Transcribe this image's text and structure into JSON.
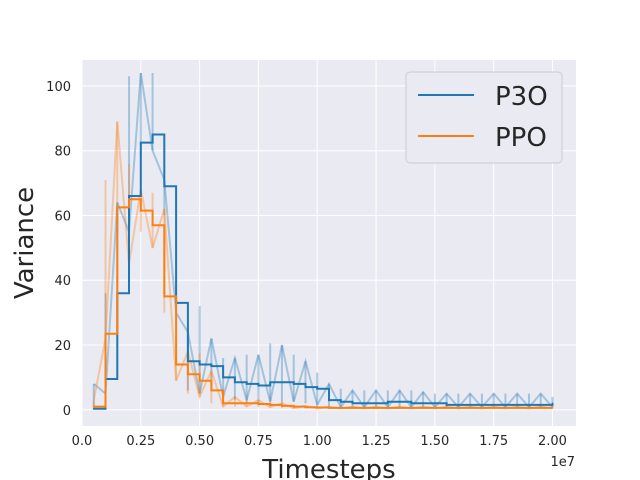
{
  "chart_data": {
    "type": "line",
    "title": "",
    "xlabel": "Timesteps",
    "ylabel": "Variance",
    "x_offset_label": "1e7",
    "xlim": [
      0.0,
      2.1
    ],
    "ylim": [
      -5,
      108
    ],
    "x_ticks": [
      0.0,
      0.25,
      0.5,
      0.75,
      1.0,
      1.25,
      1.5,
      1.75,
      2.0
    ],
    "x_tick_labels": [
      "0.0",
      "0.25",
      "0.50",
      "0.75",
      "1.00",
      "1.25",
      "1.50",
      "1.75",
      "2.00"
    ],
    "y_ticks": [
      0,
      20,
      40,
      60,
      80,
      100
    ],
    "y_tick_labels": [
      "0",
      "20",
      "40",
      "60",
      "80",
      "100"
    ],
    "grid": true,
    "legend_position": "top-right",
    "series": [
      {
        "name": "P3O",
        "color": "#1f77b4",
        "x": [
          0.05,
          0.1,
          0.15,
          0.2,
          0.25,
          0.3,
          0.35,
          0.4,
          0.45,
          0.5,
          0.55,
          0.6,
          0.65,
          0.7,
          0.75,
          0.8,
          0.85,
          0.9,
          0.95,
          1.0,
          1.05,
          1.1,
          1.15,
          1.2,
          1.25,
          1.3,
          1.35,
          1.4,
          1.45,
          1.5,
          1.55,
          1.6,
          1.65,
          1.7,
          1.75,
          1.8,
          1.85,
          1.9,
          1.95,
          2.0
        ],
        "y": [
          0.3,
          9.5,
          36.0,
          66.0,
          82.5,
          85.0,
          69.0,
          33.0,
          15.0,
          14.0,
          13.5,
          10.0,
          8.5,
          8.0,
          7.5,
          8.5,
          8.5,
          8.0,
          7.0,
          6.5,
          3.0,
          2.5,
          2.0,
          2.0,
          2.0,
          2.5,
          2.5,
          2.0,
          2.0,
          2.0,
          1.5,
          1.5,
          1.5,
          1.5,
          1.5,
          1.5,
          1.5,
          1.5,
          1.5,
          2.0
        ],
        "raw_min": [
          0.0,
          5.0,
          30.0,
          55.0,
          78.0,
          80.0,
          60.0,
          30.0,
          6.0,
          5.0,
          8.0,
          4.0,
          3.0,
          3.0,
          2.0,
          2.5,
          2.0,
          2.5,
          2.0,
          1.5,
          1.0,
          0.8,
          0.8,
          0.8,
          0.8,
          0.8,
          0.8,
          0.8,
          0.8,
          0.8,
          0.8,
          0.8,
          0.8,
          0.8,
          0.8,
          0.8,
          0.8,
          0.8,
          0.8,
          0.8
        ],
        "raw_max": [
          8.0,
          36.0,
          64.0,
          103.0,
          104.0,
          104.0,
          71.0,
          35.0,
          24.0,
          32.0,
          22.0,
          16.0,
          16.0,
          17.0,
          17.0,
          20.5,
          20.0,
          17.0,
          15.0,
          11.5,
          8.0,
          6.5,
          6.0,
          6.0,
          6.0,
          6.0,
          6.0,
          6.0,
          5.5,
          5.0,
          5.0,
          5.0,
          5.0,
          5.0,
          5.0,
          5.0,
          5.0,
          5.0,
          5.0,
          4.0
        ]
      },
      {
        "name": "PPO",
        "color": "#ff7f0e",
        "x": [
          0.05,
          0.1,
          0.15,
          0.2,
          0.25,
          0.3,
          0.35,
          0.4,
          0.45,
          0.5,
          0.55,
          0.6,
          0.65,
          0.7,
          0.75,
          0.8,
          0.85,
          0.9,
          0.95,
          1.0,
          1.05,
          1.1,
          1.15,
          1.2,
          1.25,
          1.3,
          1.35,
          1.4,
          1.45,
          1.5,
          1.55,
          1.6,
          1.65,
          1.7,
          1.75,
          1.8,
          1.85,
          1.9,
          1.95,
          2.0
        ],
        "y": [
          1.0,
          23.5,
          62.5,
          65.0,
          61.5,
          57.0,
          35.0,
          14.0,
          11.0,
          9.0,
          6.0,
          2.0,
          2.0,
          2.0,
          1.8,
          1.5,
          1.2,
          1.0,
          0.8,
          0.7,
          0.6,
          0.6,
          0.6,
          0.6,
          0.6,
          0.6,
          0.6,
          0.6,
          0.6,
          0.6,
          0.6,
          0.6,
          0.6,
          0.6,
          0.6,
          0.6,
          0.6,
          0.6,
          0.6,
          0.6
        ],
        "raw_min": [
          0.5,
          22.0,
          55.0,
          45.0,
          55.0,
          50.0,
          30.0,
          9.0,
          5.0,
          4.0,
          2.0,
          1.0,
          1.0,
          1.0,
          0.8,
          0.8,
          0.6,
          0.5,
          0.5,
          0.4,
          0.4,
          0.4,
          0.4,
          0.4,
          0.4,
          0.4,
          0.4,
          0.4,
          0.4,
          0.4,
          0.4,
          0.4,
          0.4,
          0.4,
          0.4,
          0.4,
          0.4,
          0.4,
          0.4,
          0.4
        ],
        "raw_max": [
          3.0,
          71.0,
          89.0,
          76.0,
          68.0,
          67.0,
          62.0,
          16.0,
          18.0,
          17.5,
          12.0,
          5.0,
          4.0,
          3.5,
          3.0,
          2.5,
          2.0,
          1.5,
          1.2,
          1.0,
          1.0,
          1.0,
          1.0,
          1.0,
          1.0,
          1.0,
          1.0,
          1.0,
          1.0,
          1.0,
          1.0,
          1.0,
          1.0,
          1.0,
          1.0,
          1.0,
          1.0,
          1.0,
          1.0,
          1.0
        ]
      }
    ]
  }
}
